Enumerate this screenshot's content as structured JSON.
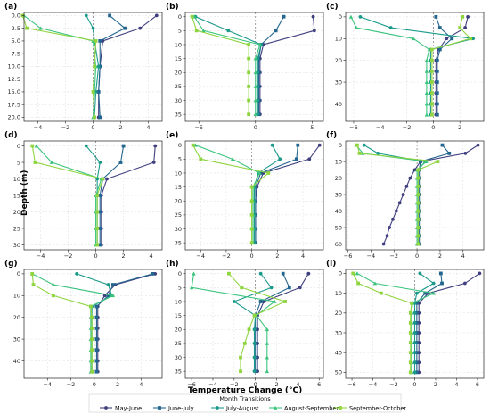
{
  "figure": {
    "xlabel": "Temperature Change (°C)",
    "ylabel": "Depth (m)",
    "legend_title": "Month Transitions"
  },
  "series_meta": [
    {
      "name": "May-June",
      "color": "#3f3f7f",
      "marker": "circle"
    },
    {
      "name": "June-July",
      "color": "#22658e",
      "marker": "square"
    },
    {
      "name": "July-August",
      "color": "#1b9a8a",
      "marker": "circle"
    },
    {
      "name": "August-September",
      "color": "#3cc47e",
      "marker": "triangle"
    },
    {
      "name": "September-October",
      "color": "#8fd540",
      "marker": "square"
    }
  ],
  "chart_data": [
    {
      "type": "line",
      "label": "(a)",
      "xlim": [
        -5,
        5
      ],
      "ylim": [
        20.8,
        -0.6
      ],
      "xticks": [
        -4,
        -2,
        0,
        2,
        4
      ],
      "yticks": [
        0.0,
        2.5,
        5.0,
        7.5,
        10.0,
        12.5,
        15.0,
        17.5,
        20.0
      ],
      "ytick_labels": [
        "0.0",
        "2.5",
        "5.0",
        "7.5",
        "10.0",
        "12.5",
        "15.0",
        "17.5",
        "20.0"
      ],
      "depths": [
        0,
        2.5,
        5,
        10,
        15,
        20
      ],
      "series": [
        {
          "name": "May-June",
          "x": [
            4.6,
            3.4,
            0.7,
            0.5,
            0.4,
            0.4
          ]
        },
        {
          "name": "June-July",
          "x": [
            1.2,
            2.3,
            0.5,
            0.5,
            0.4,
            0.5
          ]
        },
        {
          "name": "July-August",
          "x": [
            -0.5,
            0.0,
            0.1,
            0.4,
            0.2,
            0.1
          ]
        },
        {
          "name": "August-September",
          "x": [
            -5.0,
            -3.8,
            0.0,
            0.2,
            0.1,
            0.0
          ]
        },
        {
          "name": "September-October",
          "x": [
            -5.1,
            -4.8,
            0.2,
            0.1,
            0.0,
            0.1
          ]
        }
      ]
    },
    {
      "type": "line",
      "label": "(b)",
      "xlim": [
        -6.2,
        6.0
      ],
      "ylim": [
        37.5,
        -1.5
      ],
      "xticks": [
        -5,
        0,
        5
      ],
      "yticks": [
        0,
        5,
        10,
        15,
        20,
        25,
        30,
        35
      ],
      "ytick_labels": [
        "0",
        "5",
        "10",
        "15",
        "20",
        "25",
        "30",
        "35"
      ],
      "depths": [
        0,
        5,
        10,
        15,
        20,
        25,
        30,
        35
      ],
      "series": [
        {
          "name": "May-June",
          "x": [
            5.1,
            5.2,
            0.7,
            0.4,
            0.4,
            0.4,
            0.4,
            0.4
          ]
        },
        {
          "name": "June-July",
          "x": [
            2.5,
            1.8,
            0.5,
            0.3,
            0.3,
            0.3,
            0.3,
            0.3
          ]
        },
        {
          "name": "July-August",
          "x": [
            -5.3,
            -2.4,
            0.5,
            0.2,
            0.2,
            0.2,
            0.2,
            0.2
          ]
        },
        {
          "name": "August-September",
          "x": [
            -5.4,
            -4.6,
            0.4,
            0.0,
            0.0,
            0.0,
            0.0,
            0.0
          ]
        },
        {
          "name": "September-October",
          "x": [
            -5.6,
            -5.2,
            -0.6,
            -0.6,
            -0.6,
            -0.6,
            -0.6,
            -0.6
          ]
        }
      ]
    },
    {
      "type": "line",
      "label": "(c)",
      "xlim": [
        -6.6,
        3.8
      ],
      "ylim": [
        48,
        -2
      ],
      "xticks": [
        -6,
        -4,
        -2,
        0,
        2
      ],
      "yticks": [
        0,
        10,
        20,
        30,
        40
      ],
      "ytick_labels": [
        "0",
        "10",
        "20",
        "30",
        "40"
      ],
      "depths": [
        0,
        5,
        10,
        15,
        20,
        25,
        30,
        35,
        40,
        45
      ],
      "series": [
        {
          "name": "May-June",
          "x": [
            2.6,
            2.4,
            1.0,
            0.4,
            0.2,
            0.2,
            0.2,
            0.2,
            0.2,
            0.2
          ]
        },
        {
          "name": "June-July",
          "x": [
            0.2,
            0.5,
            1.4,
            0.5,
            0.3,
            0.3,
            0.3,
            0.3,
            0.3,
            0.3
          ]
        },
        {
          "name": "July-August",
          "x": [
            -5.5,
            -3.2,
            3.0,
            -0.2,
            -0.2,
            -0.2,
            -0.2,
            -0.2,
            -0.2,
            -0.2
          ]
        },
        {
          "name": "August-September",
          "x": [
            -6.2,
            -5.8,
            -1.5,
            -0.3,
            -0.5,
            -0.5,
            -0.5,
            -0.5,
            -0.5,
            -0.5
          ]
        },
        {
          "name": "September-October",
          "x": [
            2.2,
            2.0,
            2.8,
            -0.1,
            -0.1,
            -0.1,
            -0.1,
            -0.1,
            -0.1,
            -0.1
          ]
        }
      ]
    },
    {
      "type": "line",
      "label": "(d)",
      "xlim": [
        -5.2,
        4.8
      ],
      "ylim": [
        31.5,
        -1.5
      ],
      "xticks": [
        -4,
        -2,
        0,
        2,
        4
      ],
      "yticks": [
        0,
        5,
        10,
        15,
        20,
        25,
        30
      ],
      "ytick_labels": [
        "0",
        "5",
        "10",
        "15",
        "20",
        "25",
        "30"
      ],
      "depths": [
        0,
        5,
        10,
        15,
        20,
        25,
        30
      ],
      "series": [
        {
          "name": "May-June",
          "x": [
            4.3,
            4.2,
            0.8,
            0.4,
            0.4,
            0.4,
            0.4
          ]
        },
        {
          "name": "June-July",
          "x": [
            2.0,
            1.8,
            0.5,
            0.3,
            0.3,
            0.3,
            0.3
          ]
        },
        {
          "name": "July-August",
          "x": [
            -0.7,
            0.3,
            0.1,
            0.1,
            0.1,
            0.1,
            0.1
          ]
        },
        {
          "name": "August-September",
          "x": [
            -4.3,
            -3.2,
            0.4,
            0.0,
            0.0,
            0.0,
            0.0
          ]
        },
        {
          "name": "September-October",
          "x": [
            -4.6,
            -4.4,
            0.5,
            0.1,
            0.1,
            0.1,
            0.1
          ]
        }
      ]
    },
    {
      "type": "line",
      "label": "(e)",
      "xlim": [
        -5.2,
        5.6
      ],
      "ylim": [
        37.5,
        -1.5
      ],
      "xticks": [
        -4,
        -2,
        0,
        2,
        4
      ],
      "yticks": [
        0,
        5,
        10,
        15,
        20,
        25,
        30,
        35
      ],
      "ytick_labels": [
        "0",
        "5",
        "10",
        "15",
        "20",
        "25",
        "30",
        "35"
      ],
      "depths": [
        0,
        5,
        10,
        15,
        20,
        25,
        30,
        35
      ],
      "series": [
        {
          "name": "May-June",
          "x": [
            5.3,
            4.5,
            0.9,
            0.4,
            0.3,
            0.3,
            0.3,
            0.3
          ]
        },
        {
          "name": "June-July",
          "x": [
            3.6,
            3.5,
            0.7,
            0.3,
            0.3,
            0.3,
            0.3,
            0.3
          ]
        },
        {
          "name": "July-August",
          "x": [
            1.6,
            2.2,
            0.5,
            0.2,
            0.2,
            0.2,
            0.2,
            0.2
          ]
        },
        {
          "name": "August-September",
          "x": [
            -4.4,
            -1.5,
            0.6,
            0.1,
            0.1,
            0.1,
            0.1,
            0.1
          ]
        },
        {
          "name": "September-October",
          "x": [
            -4.6,
            -4.0,
            1.3,
            0.0,
            0.0,
            0.0,
            0.0,
            0.0
          ]
        }
      ]
    },
    {
      "type": "line",
      "label": "(f)",
      "xlim": [
        -6.2,
        5.8
      ],
      "ylim": [
        63.5,
        -2.5
      ],
      "xticks": [
        -6,
        -4,
        -2,
        0,
        2,
        4
      ],
      "yticks": [
        0,
        10,
        20,
        30,
        40,
        50,
        60
      ],
      "ytick_labels": [
        "0",
        "10",
        "20",
        "30",
        "40",
        "50",
        "60"
      ],
      "depths": [
        0,
        5,
        10,
        15,
        20,
        25,
        30,
        35,
        40,
        45,
        50,
        55,
        60
      ],
      "series": [
        {
          "name": "May-June",
          "x": [
            5.3,
            4.2,
            0.3,
            -0.2,
            -0.6,
            -0.9,
            -1.2,
            -1.5,
            -1.8,
            -2.1,
            -2.4,
            -2.6,
            -2.9
          ]
        },
        {
          "name": "June-July",
          "x": [
            2.2,
            2.8,
            0.3,
            0.2,
            0.2,
            0.2,
            0.2,
            0.2,
            0.2,
            0.2,
            0.2,
            0.2,
            0.2
          ]
        },
        {
          "name": "July-August",
          "x": [
            -4.6,
            -3.4,
            0.7,
            0.1,
            0.1,
            0.1,
            0.1,
            0.1,
            0.1,
            0.1,
            0.1,
            0.1,
            0.1
          ]
        },
        {
          "name": "August-September",
          "x": [
            -5.3,
            -4.7,
            0.8,
            0.0,
            0.0,
            0.0,
            0.0,
            0.0,
            0.0,
            0.0,
            0.0,
            0.0,
            0.0
          ]
        },
        {
          "name": "September-October",
          "x": [
            -5.2,
            -5.0,
            1.8,
            0.1,
            0.1,
            0.1,
            0.1,
            0.1,
            0.1,
            0.1,
            0.1,
            0.1,
            0.1
          ]
        }
      ]
    },
    {
      "type": "line",
      "label": "(g)",
      "xlim": [
        -6.0,
        5.8
      ],
      "ylim": [
        48,
        -2
      ],
      "xticks": [
        -4,
        -2,
        0,
        2,
        4
      ],
      "yticks": [
        0,
        10,
        20,
        30,
        40
      ],
      "ytick_labels": [
        "0",
        "10",
        "20",
        "30",
        "40"
      ],
      "depths": [
        0,
        5,
        10,
        15,
        20,
        25,
        30,
        35,
        40,
        45
      ],
      "series": [
        {
          "name": "May-June",
          "x": [
            5.2,
            1.8,
            0.9,
            0.3,
            0.3,
            0.3,
            0.3,
            0.3,
            0.3,
            0.3
          ]
        },
        {
          "name": "June-July",
          "x": [
            5.0,
            1.6,
            1.2,
            0.2,
            0.2,
            0.2,
            0.2,
            0.2,
            0.2,
            0.2
          ]
        },
        {
          "name": "July-August",
          "x": [
            -1.5,
            1.2,
            1.5,
            -0.2,
            -0.2,
            -0.2,
            -0.2,
            -0.2,
            -0.2,
            -0.2
          ]
        },
        {
          "name": "August-September",
          "x": [
            -5.3,
            -3.5,
            1.6,
            -0.3,
            -0.3,
            -0.3,
            -0.3,
            -0.3,
            -0.3,
            -0.3
          ]
        },
        {
          "name": "September-October",
          "x": [
            -5.3,
            -5.2,
            -3.5,
            -0.3,
            -0.2,
            -0.2,
            -0.2,
            -0.2,
            -0.2,
            -0.2
          ]
        }
      ]
    },
    {
      "type": "line",
      "label": "(h)",
      "xlim": [
        -6.6,
        6.4
      ],
      "ylim": [
        37.5,
        -1.5
      ],
      "xticks": [
        -6,
        -4,
        -2,
        0,
        2,
        4,
        6
      ],
      "yticks": [
        0,
        5,
        10,
        15,
        20,
        25,
        30,
        35
      ],
      "ytick_labels": [
        "0",
        "5",
        "10",
        "15",
        "20",
        "25",
        "30",
        "35"
      ],
      "depths": [
        0,
        5,
        10,
        15,
        20,
        25,
        30,
        35
      ],
      "series": [
        {
          "name": "May-June",
          "x": [
            5.0,
            4.2,
            0.8,
            0.2,
            0.2,
            0.2,
            0.2,
            0.2
          ]
        },
        {
          "name": "June-July",
          "x": [
            2.6,
            3.2,
            0.5,
            0.0,
            0.0,
            0.0,
            0.0,
            0.0
          ]
        },
        {
          "name": "July-August",
          "x": [
            0.5,
            1.5,
            -2.0,
            0.0,
            -0.1,
            -0.1,
            -0.1,
            -0.1
          ]
        },
        {
          "name": "August-September",
          "x": [
            -5.8,
            -6.0,
            1.8,
            0.1,
            1.1,
            1.1,
            1.1,
            1.1
          ]
        },
        {
          "name": "September-October",
          "x": [
            -2.5,
            -1.3,
            2.8,
            -0.1,
            -0.6,
            -1.0,
            -1.4,
            -1.4
          ]
        }
      ]
    },
    {
      "type": "line",
      "label": "(i)",
      "xlim": [
        -6.6,
        6.6
      ],
      "ylim": [
        53,
        -2
      ],
      "xticks": [
        -6,
        -4,
        -2,
        0,
        2,
        4,
        6
      ],
      "yticks": [
        0,
        10,
        20,
        30,
        40,
        50
      ],
      "ytick_labels": [
        "0",
        "10",
        "20",
        "30",
        "40",
        "50"
      ],
      "depths": [
        0,
        5,
        10,
        15,
        20,
        25,
        30,
        35,
        40,
        45,
        50
      ],
      "series": [
        {
          "name": "May-June",
          "x": [
            6.2,
            4.8,
            1.3,
            0.4,
            0.4,
            0.4,
            0.4,
            0.4,
            0.4,
            0.4,
            0.4
          ]
        },
        {
          "name": "June-July",
          "x": [
            2.5,
            2.6,
            1.0,
            0.2,
            0.2,
            0.2,
            0.2,
            0.2,
            0.2,
            0.2,
            0.2
          ]
        },
        {
          "name": "July-August",
          "x": [
            0.5,
            1.8,
            0.2,
            0.0,
            0.0,
            0.0,
            0.0,
            0.0,
            0.0,
            0.0,
            0.0
          ]
        },
        {
          "name": "August-September",
          "x": [
            -5.5,
            -3.8,
            1.8,
            -0.2,
            -0.3,
            -0.3,
            -0.3,
            -0.3,
            -0.3,
            -0.3,
            -0.3
          ]
        },
        {
          "name": "September-October",
          "x": [
            -5.9,
            -5.4,
            -3.2,
            -0.3,
            -0.4,
            -0.4,
            -0.4,
            -0.4,
            -0.4,
            -0.4,
            -0.4
          ]
        }
      ]
    }
  ]
}
